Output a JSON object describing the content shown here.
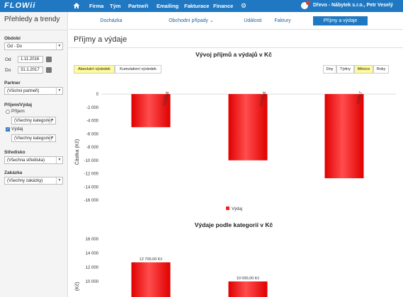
{
  "app": {
    "logo": "FLOWii"
  },
  "topnav": {
    "items": [
      "Firma",
      "Tým",
      "Partneři",
      "Emailing",
      "Fakturace",
      "Finance"
    ],
    "user": "Dřevo - Nábytek s.r.o., Petr Veselý"
  },
  "sidebar": {
    "title": "Přehledy a trendy",
    "period_label": "Období",
    "period_value": "Od - Do",
    "from_label": "Od",
    "from_value": "1.11.2016",
    "to_label": "Do",
    "to_value": "31.1.2017",
    "partner_label": "Partner",
    "partner_value": "(Všichni partneři)",
    "incexp_label": "Příjem/Výdaj",
    "income_label": "Příjem",
    "income_category": "(Všechny kategorie)",
    "expense_label": "Výdaj",
    "expense_category": "(Všechny kategorie)",
    "center_label": "Středisko",
    "center_value": "(Všechna střediska)",
    "order_label": "Zakázka",
    "order_value": "(Všechny zakázky)"
  },
  "tabs": {
    "items": [
      "Docházka",
      "Obchodní případy",
      "Události",
      "Faktury",
      "Příjmy a výdaje"
    ],
    "active": "Příjmy a výdaje"
  },
  "main": {
    "page_title": "Příjmy a výdaje",
    "mode_buttons": [
      "Absolutní výsledek",
      "Kumulativní výsledek"
    ],
    "mode_active": "Absolutní výsledek",
    "period_buttons": [
      "Dny",
      "Týdny",
      "Měsíce",
      "Roky"
    ],
    "period_active": "Měsíce"
  },
  "colors": {
    "accent": "#1f78c1",
    "bar": "#ff1a1a",
    "highlight": "#fffb9b"
  },
  "chart_data": [
    {
      "type": "bar",
      "title": "Vývoj příjmů a výdajů v Kč",
      "ylabel": "Částka (Kč)",
      "categories": [
        "11/2016",
        "12/2016",
        "1/2017"
      ],
      "series": [
        {
          "name": "Výdaj",
          "values": [
            -5000,
            -10000,
            -12700
          ]
        }
      ],
      "ylim": [
        -16000,
        0
      ],
      "yticks": [
        "0",
        "-2 000",
        "-4 000",
        "-6 000",
        "-8 000",
        "-10 000",
        "-12 000",
        "-14 000",
        "-16 000"
      ],
      "legend": "bottom"
    },
    {
      "type": "bar",
      "title": "Výdaje podle kategorií v Kč",
      "ylabel": "(Kč)",
      "values": [
        12700,
        10000
      ],
      "data_labels": [
        "12 700,00 Kč",
        "10 000,00 Kč"
      ],
      "yticks": [
        "16 000",
        "14 000",
        "12 000",
        "10 000"
      ]
    }
  ]
}
